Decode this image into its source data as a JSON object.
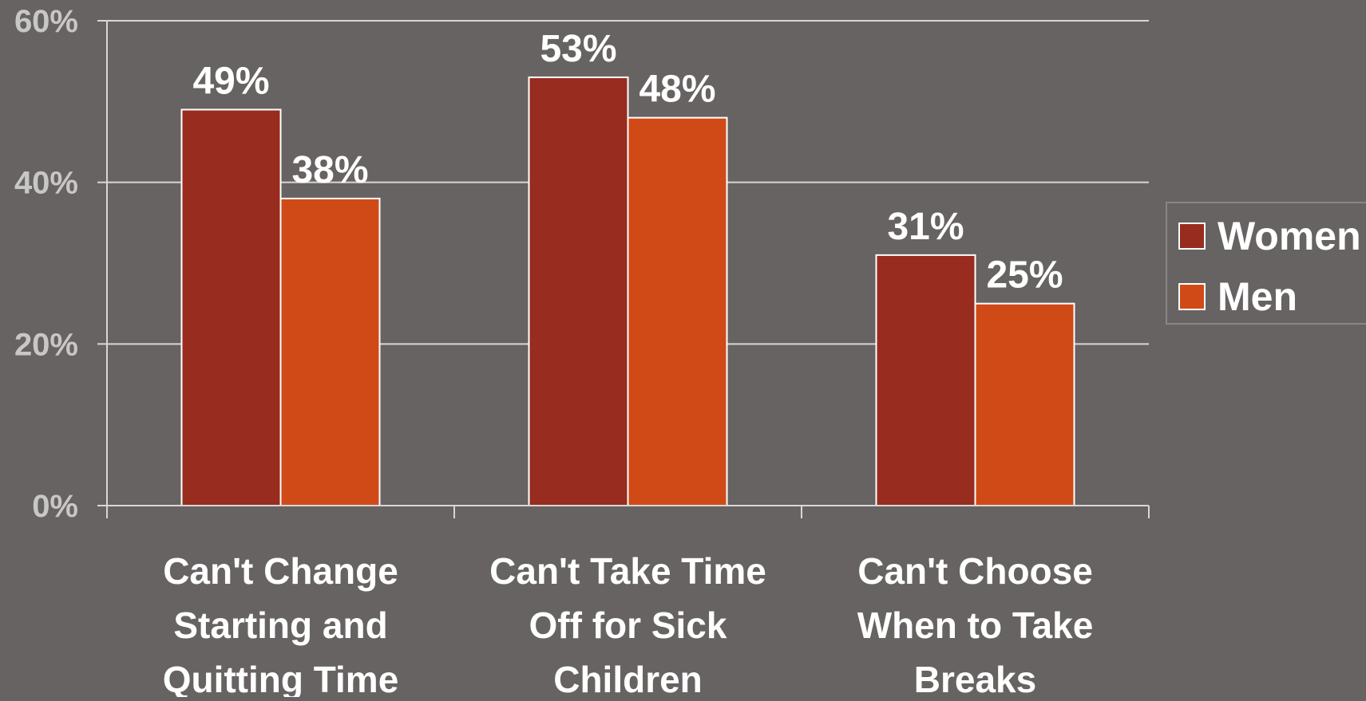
{
  "chart_data": {
    "type": "bar",
    "title": "",
    "xlabel": "",
    "ylabel": "",
    "ylim": [
      0,
      60
    ],
    "y_ticks": [
      {
        "value": 0,
        "label": "0%"
      },
      {
        "value": 20,
        "label": "20%"
      },
      {
        "value": 40,
        "label": "40%"
      },
      {
        "value": 60,
        "label": "60%"
      }
    ],
    "grid": true,
    "legend_position": "right",
    "categories": [
      [
        "Can't Change",
        "Starting and",
        "Quitting Time"
      ],
      [
        "Can't Take Time",
        "Off for Sick",
        "Children"
      ],
      [
        "Can't Choose",
        "When to Take",
        "Breaks"
      ]
    ],
    "series": [
      {
        "name": "Women",
        "color": "#982c1f",
        "values": [
          49,
          53,
          31
        ],
        "labels": [
          "49%",
          "53%",
          "31%"
        ]
      },
      {
        "name": "Men",
        "color": "#d04a18",
        "values": [
          38,
          48,
          25
        ],
        "labels": [
          "38%",
          "48%",
          "25%"
        ]
      }
    ]
  }
}
